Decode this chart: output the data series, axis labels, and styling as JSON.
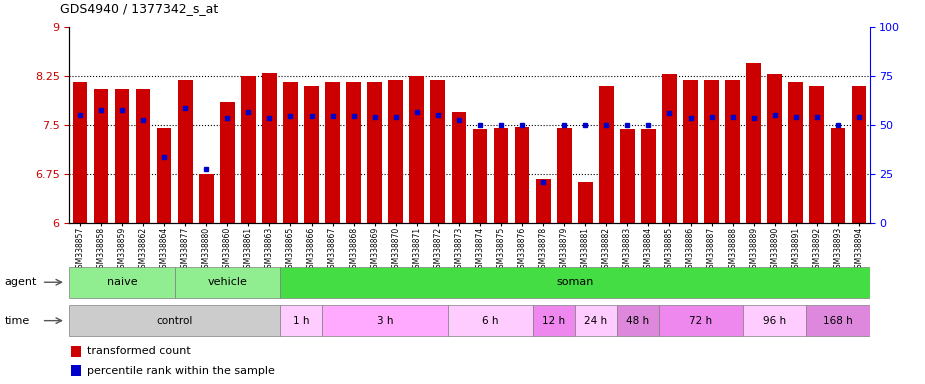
{
  "title": "GDS4940 / 1377342_s_at",
  "samples": [
    "GSM338857",
    "GSM338858",
    "GSM338859",
    "GSM338862",
    "GSM338864",
    "GSM338877",
    "GSM338880",
    "GSM338860",
    "GSM338861",
    "GSM338863",
    "GSM338865",
    "GSM338866",
    "GSM338867",
    "GSM338868",
    "GSM338869",
    "GSM338870",
    "GSM338871",
    "GSM338872",
    "GSM338873",
    "GSM338874",
    "GSM338875",
    "GSM338876",
    "GSM338878",
    "GSM338879",
    "GSM338881",
    "GSM338882",
    "GSM338883",
    "GSM338884",
    "GSM338885",
    "GSM338886",
    "GSM338887",
    "GSM338888",
    "GSM338889",
    "GSM338890",
    "GSM338891",
    "GSM338892",
    "GSM338893",
    "GSM338894"
  ],
  "bar_values": [
    8.15,
    8.05,
    8.05,
    8.05,
    7.45,
    8.18,
    6.75,
    7.85,
    8.25,
    8.3,
    8.15,
    8.1,
    8.15,
    8.15,
    8.15,
    8.18,
    8.25,
    8.18,
    7.7,
    7.43,
    7.45,
    7.47,
    6.67,
    7.45,
    6.62,
    8.1,
    7.43,
    7.43,
    8.28,
    8.18,
    8.18,
    8.18,
    8.45,
    8.28,
    8.15,
    8.1,
    7.45,
    8.1
  ],
  "percentile_values": [
    7.65,
    7.72,
    7.72,
    7.58,
    7.0,
    7.75,
    6.82,
    7.6,
    7.7,
    7.6,
    7.63,
    7.63,
    7.63,
    7.63,
    7.62,
    7.62,
    7.7,
    7.65,
    7.58,
    7.5,
    7.5,
    7.5,
    6.63,
    7.5,
    7.5,
    7.5,
    7.5,
    7.5,
    7.68,
    7.6,
    7.62,
    7.62,
    7.6,
    7.65,
    7.62,
    7.62,
    7.5,
    7.62
  ],
  "ymin": 6.0,
  "ymax": 9.0,
  "yticks": [
    6,
    6.75,
    7.5,
    8.25,
    9
  ],
  "ytick_labels": [
    "6",
    "6.75",
    "7.5",
    "8.25",
    "9"
  ],
  "right_yticks": [
    0,
    25,
    50,
    75,
    100
  ],
  "right_ytick_labels": [
    "0",
    "25",
    "50",
    "75",
    "100"
  ],
  "hlines": [
    6.75,
    7.5,
    8.25
  ],
  "bar_color": "#cc0000",
  "dot_color": "#0000cc",
  "agent_naive_color": "#90ee90",
  "agent_vehicle_color": "#90ee90",
  "agent_soman_color": "#44dd44",
  "agent_regions": [
    {
      "label": "naive",
      "start": 0,
      "end": 7
    },
    {
      "label": "vehicle",
      "start": 7,
      "end": 14
    },
    {
      "label": "soman",
      "start": 14,
      "end": 38
    }
  ],
  "time_groups": [
    {
      "label": "control",
      "start": 0,
      "end": 14,
      "color": "#cccccc"
    },
    {
      "label": "1 h",
      "start": 14,
      "end": 18,
      "color": "#ffccff"
    },
    {
      "label": "3 h",
      "start": 18,
      "end": 26,
      "color": "#ffaaff"
    },
    {
      "label": "6 h",
      "start": 26,
      "end": 30,
      "color": "#ffccff"
    },
    {
      "label": "12 h",
      "start": 30,
      "end": 32,
      "color": "#ee88ee"
    },
    {
      "label": "24 h",
      "start": 32,
      "end": 34,
      "color": "#ffccff"
    },
    {
      "label": "48 h",
      "start": 34,
      "end": 35,
      "color": "#dd88dd"
    },
    {
      "label": "72 h",
      "start": 35,
      "end": 36,
      "color": "#ee88ee"
    },
    {
      "label": "96 h",
      "start": 36,
      "end": 37,
      "color": "#ffccff"
    },
    {
      "label": "168 h",
      "start": 37,
      "end": 38,
      "color": "#dd88dd"
    }
  ]
}
